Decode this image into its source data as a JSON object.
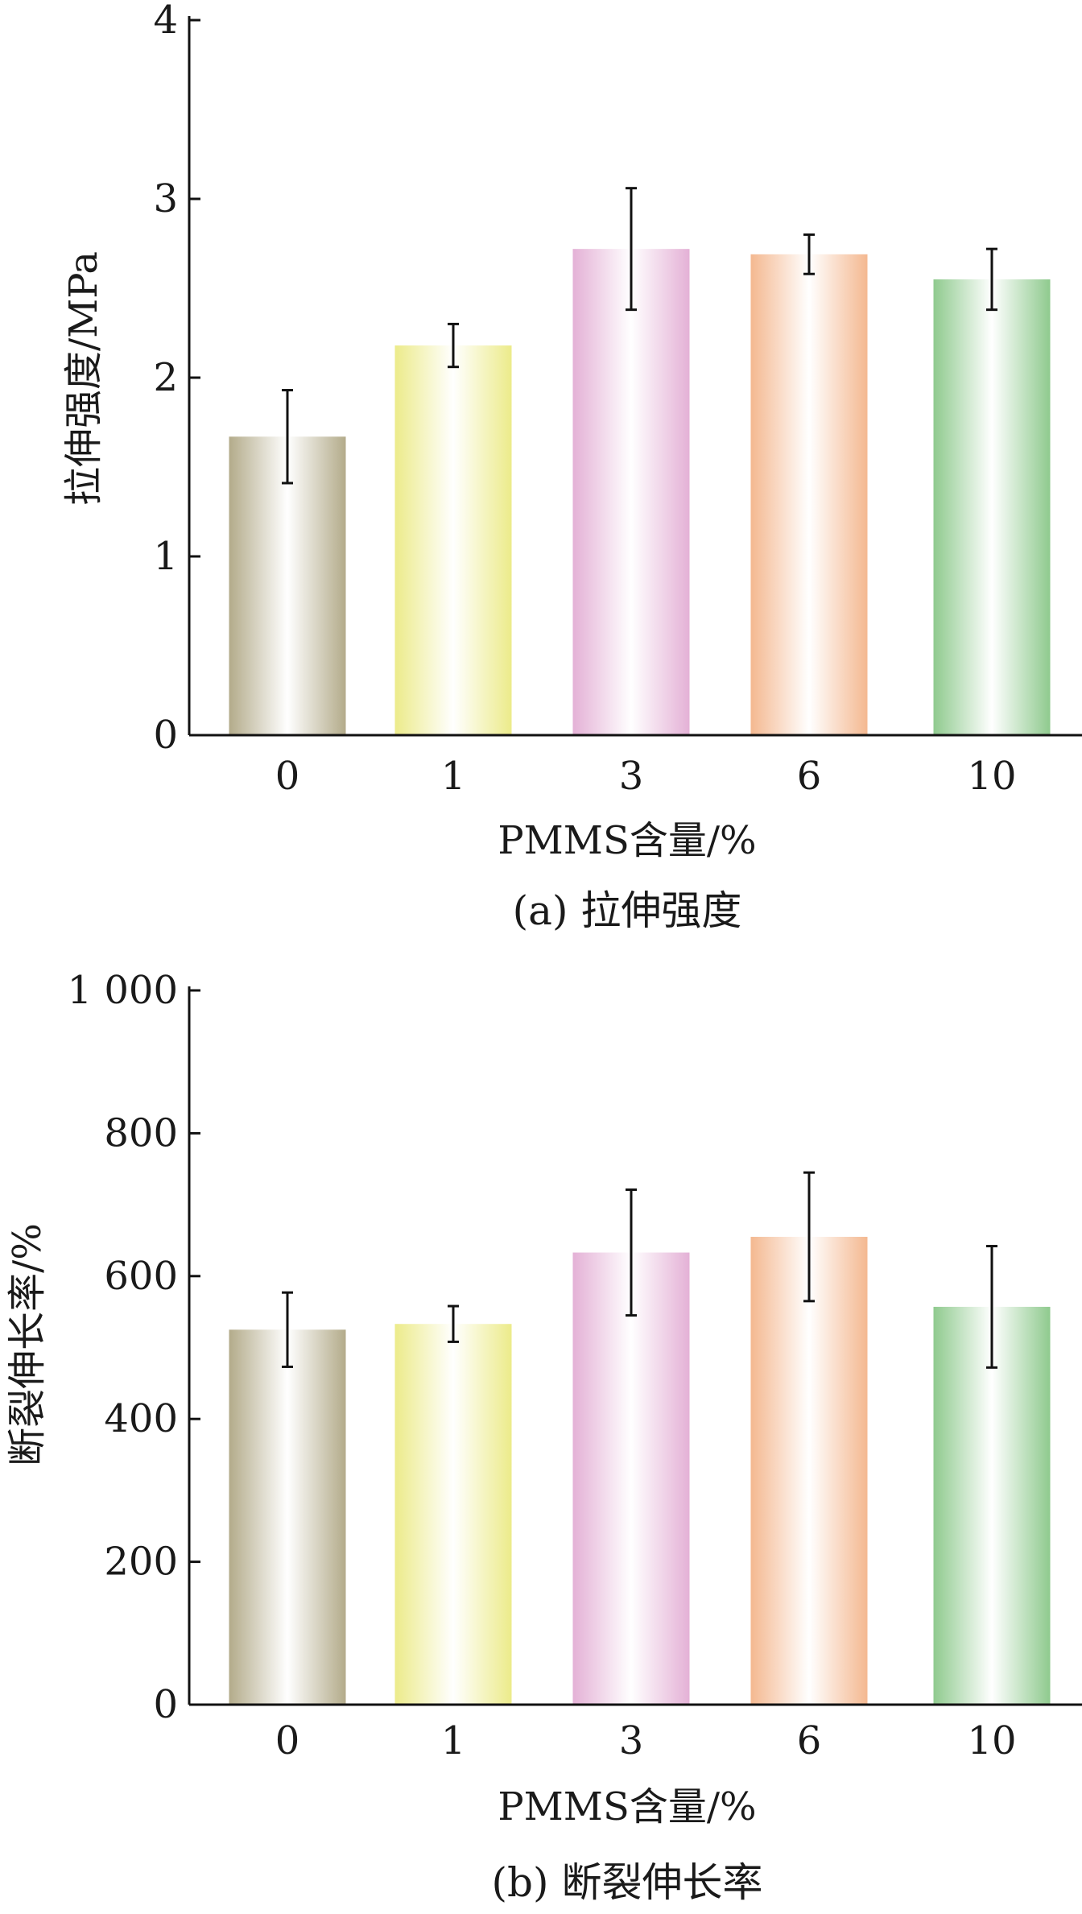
{
  "chart_data": [
    {
      "type": "bar",
      "categories": [
        "0",
        "1",
        "3",
        "6",
        "10"
      ],
      "values": [
        1.67,
        2.18,
        2.72,
        2.69,
        2.55
      ],
      "errors": [
        0.26,
        0.12,
        0.34,
        0.11,
        0.17
      ],
      "colors": [
        "#b3ab8a",
        "#eceb8a",
        "#e4b1d6",
        "#f4b890",
        "#8fca8e"
      ],
      "xlabel": "PMMS含量/%",
      "ylabel": "拉伸强度/MPa",
      "ylim": [
        0,
        4
      ],
      "yticks": [
        0,
        1,
        2,
        3,
        4
      ],
      "ytick_labels": [
        "0",
        "1",
        "2",
        "3",
        "4"
      ],
      "caption": "(a) 拉伸强度",
      "grid": false
    },
    {
      "type": "bar",
      "categories": [
        "0",
        "1",
        "3",
        "6",
        "10"
      ],
      "values": [
        525,
        533,
        633,
        655,
        557
      ],
      "errors": [
        52,
        25,
        88,
        90,
        85
      ],
      "colors": [
        "#b3ab8a",
        "#eceb8a",
        "#e4b1d6",
        "#f4b890",
        "#8fca8e"
      ],
      "xlabel": "PMMS含量/%",
      "ylabel": "断裂伸长率/%",
      "ylim": [
        0,
        1000
      ],
      "yticks": [
        0,
        200,
        400,
        600,
        800,
        1000
      ],
      "ytick_labels": [
        "0",
        "200",
        "400",
        "600",
        "800",
        "1 000"
      ],
      "caption": "(b) 断裂伸长率",
      "grid": false
    }
  ]
}
